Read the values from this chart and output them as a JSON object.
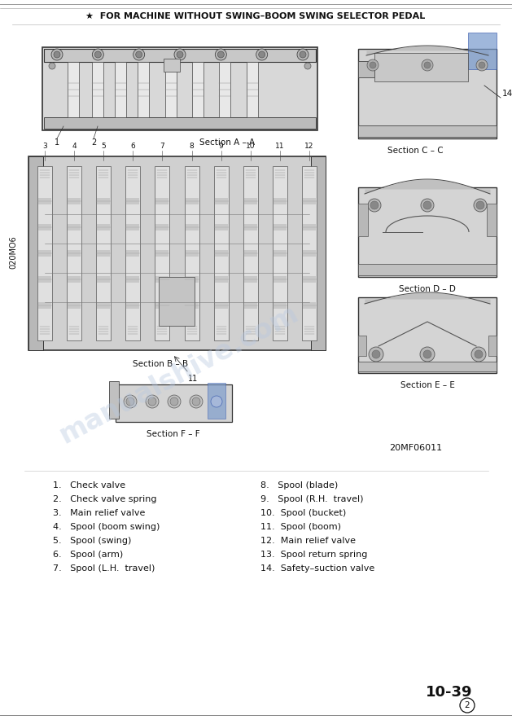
{
  "title_line": "★  FOR MACHINE WITHOUT SWING–BOOM SWING SELECTOR PEDAL",
  "bg_color": "#ffffff",
  "text_color": "#1a1a1a",
  "watermark_color": "#b8c8e0",
  "page_number": "10-39",
  "figure_ref": "20MF06011",
  "side_label": "020MO6",
  "sec_A_label": "Section A – A",
  "sec_B_label": "Section B – B",
  "sec_C_label": "Section C – C",
  "sec_D_label": "Section D – D",
  "sec_E_label": "Section E – E",
  "sec_F_label": "Section F – F",
  "parts_left": [
    "1.   Check valve",
    "2.   Check valve spring",
    "3.   Main relief valve",
    "4.   Spool (boom swing)",
    "5.   Spool (swing)",
    "6.   Spool (arm)",
    "7.   Spool (L.H.  travel)"
  ],
  "parts_right": [
    "8.   Spool (blade)",
    "9.   Spool (R.H.  travel)",
    "10.  Spool (bucket)",
    "11.  Spool (boom)",
    "12.  Main relief valve",
    "13.  Spool return spring",
    "14.  Safety–suction valve"
  ],
  "label_14": "14",
  "label_11_below": "11",
  "num_labels_BB": [
    "3",
    "4",
    "5",
    "6",
    "7",
    "8",
    "9",
    "10",
    "11",
    "12"
  ],
  "num_labels_AA": [
    "1",
    "2"
  ]
}
